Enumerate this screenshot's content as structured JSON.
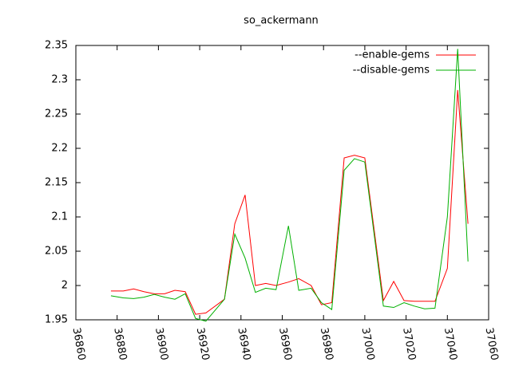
{
  "chart_data": {
    "type": "line",
    "title": "so_ackermann",
    "x": [
      36877,
      36883,
      36888,
      36893,
      36898,
      36903,
      36908,
      36913,
      36918,
      36923,
      36932,
      36937,
      36942,
      36947,
      36952,
      36957,
      36963,
      36968,
      36974,
      36979,
      36984,
      36990,
      36995,
      37000,
      37009,
      37014,
      37019,
      37024,
      37029,
      37034,
      37040,
      37045,
      37050
    ],
    "series": [
      {
        "name": "--enable-gems",
        "color": "#ff0000",
        "values": [
          1.992,
          1.992,
          1.995,
          1.991,
          1.988,
          1.988,
          1.993,
          1.991,
          1.958,
          1.96,
          1.98,
          2.09,
          2.132,
          2.0,
          2.003,
          2.0,
          2.005,
          2.01,
          2.0,
          1.972,
          1.975,
          2.186,
          2.19,
          2.186,
          1.978,
          2.006,
          1.978,
          1.977,
          1.977,
          1.977,
          2.025,
          2.285,
          2.09
        ]
      },
      {
        "name": "--disable-gems",
        "color": "#00b000",
        "values": [
          1.985,
          1.982,
          1.981,
          1.983,
          1.987,
          1.983,
          1.98,
          1.988,
          1.952,
          1.948,
          1.98,
          2.075,
          2.04,
          1.99,
          1.996,
          1.994,
          2.087,
          1.993,
          1.996,
          1.975,
          1.965,
          2.168,
          2.185,
          2.18,
          1.97,
          1.968,
          1.975,
          1.97,
          1.966,
          1.967,
          2.1,
          2.345,
          2.035
        ]
      }
    ],
    "xlim": [
      36860,
      37060
    ],
    "xticks": [
      36860,
      36880,
      36900,
      36920,
      36940,
      36960,
      36980,
      37000,
      37020,
      37040,
      37060
    ],
    "ylim": [
      1.95,
      2.35
    ],
    "yticks": [
      1.95,
      2,
      2.05,
      2.1,
      2.15,
      2.2,
      2.25,
      2.3,
      2.35
    ],
    "legend": "top-right"
  }
}
